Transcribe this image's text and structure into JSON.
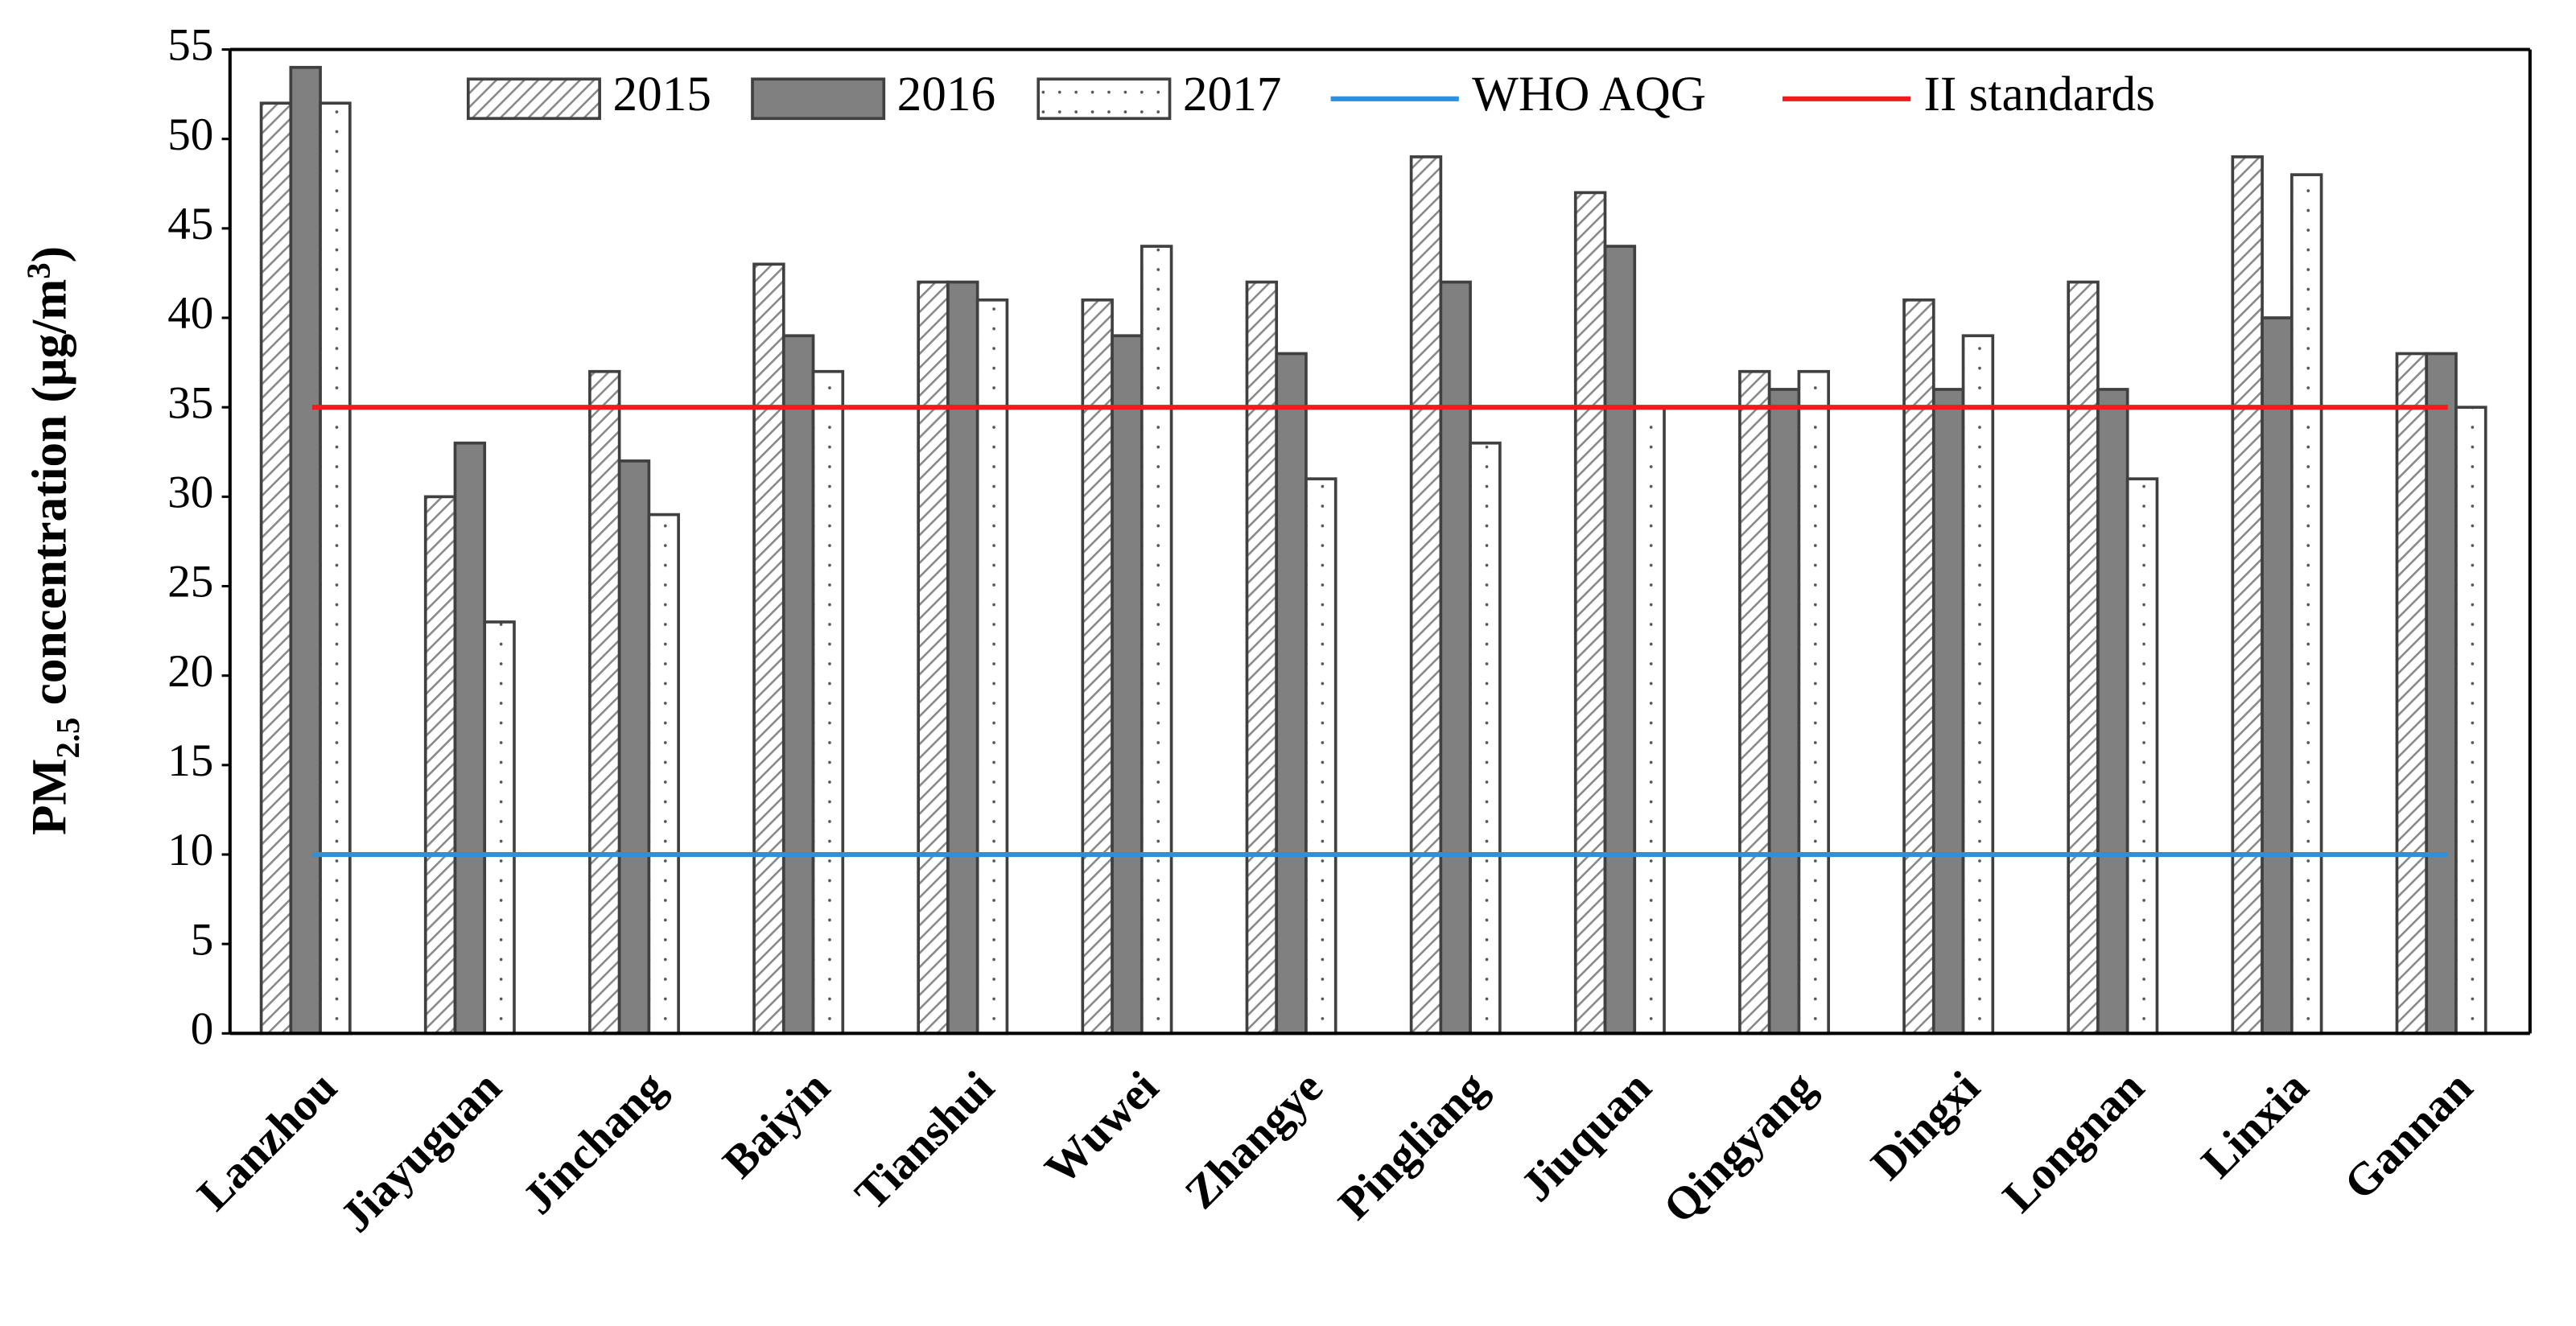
{
  "chart_data": {
    "type": "bar",
    "ylabel_parts": [
      "PM",
      "2.5",
      " concentration (μg/m",
      "3",
      ")"
    ],
    "categories": [
      "Lanzhou",
      "Jiayuguan",
      "Jinchang",
      "Baiyin",
      "Tianshui",
      "Wuwei",
      "Zhangye",
      "Pingliang",
      "Jiuquan",
      "Qingyang",
      "Dingxi",
      "Longnan",
      "Linxia",
      "Gannan"
    ],
    "series": [
      {
        "name": "2015",
        "color": "#ffffff",
        "pattern": "hatch",
        "values": [
          52,
          30,
          37,
          43,
          42,
          41,
          42,
          49,
          47,
          37,
          41,
          42,
          49,
          38
        ]
      },
      {
        "name": "2016",
        "color": "#808080",
        "pattern": "solid",
        "values": [
          54,
          33,
          32,
          39,
          42,
          39,
          38,
          42,
          44,
          36,
          36,
          36,
          40,
          38
        ]
      },
      {
        "name": "2017",
        "color": "#ffffff",
        "pattern": "dots",
        "values": [
          52,
          23,
          29,
          37,
          41,
          44,
          31,
          33,
          35,
          37,
          39,
          31,
          48,
          35
        ]
      }
    ],
    "reference_lines": [
      {
        "name": "WHO AQG",
        "color": "#2f8fd8",
        "value": 10
      },
      {
        "name": "II standards",
        "color": "#ee1c1c",
        "value": 35
      }
    ],
    "ylim": [
      0,
      55
    ],
    "yticks": [
      0,
      5,
      10,
      15,
      20,
      25,
      30,
      35,
      40,
      45,
      50,
      55
    ]
  }
}
